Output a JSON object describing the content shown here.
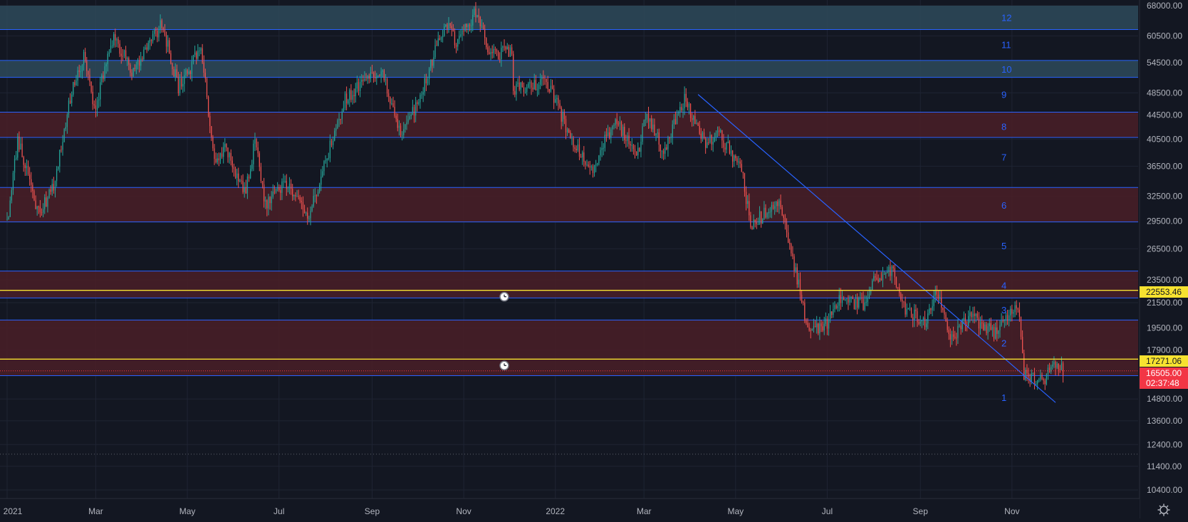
{
  "chart_data": {
    "type": "candlestick",
    "price_axis": {
      "scale": "log",
      "ticks": [
        "68000.00",
        "60500.00",
        "54500.00",
        "48500.00",
        "44500.00",
        "40500.00",
        "36500.00",
        "32500.00",
        "29500.00",
        "26500.00",
        "23500.00",
        "21500.00",
        "19500.00",
        "17900.00",
        "14800.00",
        "13600.00",
        "12400.00",
        "11400.00",
        "10400.00"
      ]
    },
    "time_axis": {
      "ticks": [
        "2021",
        "Mar",
        "May",
        "Jul",
        "Sep",
        "Nov",
        "2022",
        "Mar",
        "May",
        "Jul",
        "Sep",
        "Nov"
      ]
    },
    "horizontal_lines": [
      62000,
      55000,
      51500,
      45000,
      40800,
      33600,
      29400,
      24300,
      21900,
      20100,
      16200
    ],
    "zones": [
      {
        "top": 68000,
        "bottom": 62000,
        "color": "#2e4a5a"
      },
      {
        "top": 55000,
        "bottom": 51500,
        "color": "#2e4a5a"
      },
      {
        "top": 45000,
        "bottom": 40800,
        "color": "#4a1f27"
      },
      {
        "top": 33600,
        "bottom": 29400,
        "color": "#4a1f27"
      },
      {
        "top": 24300,
        "bottom": 21900,
        "color": "#4a1f27"
      },
      {
        "top": 20100,
        "bottom": 16200,
        "color": "#4a1f27"
      }
    ],
    "zone_labels": [
      {
        "text": "12",
        "price": 65000
      },
      {
        "text": "11",
        "price": 58500
      },
      {
        "text": "10",
        "price": 53200
      },
      {
        "text": "9",
        "price": 48200
      },
      {
        "text": "8",
        "price": 42600
      },
      {
        "text": "7",
        "price": 37800
      },
      {
        "text": "6",
        "price": 31400
      },
      {
        "text": "5",
        "price": 26800
      },
      {
        "text": "4",
        "price": 23000
      },
      {
        "text": "3",
        "price": 20900
      },
      {
        "text": "2",
        "price": 18400
      },
      {
        "text": "1",
        "price": 14900
      }
    ],
    "price_tags": [
      {
        "label": "22553.46",
        "bg": "#f7e230",
        "fg": "#131722"
      },
      {
        "label": "17271.06",
        "bg": "#f7e230",
        "fg": "#131722"
      },
      {
        "label": "16505.00",
        "bg": "#f23645",
        "fg": "#ffffff"
      },
      {
        "label": "02:37:48",
        "bg": "#f23645",
        "fg": "#ffffff"
      }
    ],
    "alert_lines": [
      22553.46,
      17271.06
    ],
    "dotted_line": 11950,
    "trendline": [
      {
        "date": "2022-04-06",
        "price": 48200
      },
      {
        "date": "2022-11-30",
        "price": 14600
      }
    ],
    "colors": {
      "up": "#26a69a",
      "down": "#ef5350",
      "line": "#2962ff",
      "alert": "#f7e230"
    },
    "keypoints": [
      [
        "2021-01-01",
        29000
      ],
      [
        "2021-01-08",
        40500
      ],
      [
        "2021-01-22",
        30500
      ],
      [
        "2021-02-01",
        33500
      ],
      [
        "2021-02-12",
        47500
      ],
      [
        "2021-02-21",
        56000
      ],
      [
        "2021-02-28",
        45000
      ],
      [
        "2021-03-13",
        61000
      ],
      [
        "2021-03-25",
        52500
      ],
      [
        "2021-04-14",
        63500
      ],
      [
        "2021-04-25",
        49500
      ],
      [
        "2021-05-10",
        57500
      ],
      [
        "2021-05-19",
        37500
      ],
      [
        "2021-05-26",
        39000
      ],
      [
        "2021-06-08",
        32800
      ],
      [
        "2021-06-15",
        40000
      ],
      [
        "2021-06-22",
        31500
      ],
      [
        "2021-07-06",
        34200
      ],
      [
        "2021-07-20",
        29800
      ],
      [
        "2021-08-14",
        47500
      ],
      [
        "2021-08-23",
        49800
      ],
      [
        "2021-09-07",
        52800
      ],
      [
        "2021-09-21",
        41000
      ],
      [
        "2021-10-05",
        49500
      ],
      [
        "2021-10-20",
        64000
      ],
      [
        "2021-10-27",
        58500
      ],
      [
        "2021-11-10",
        67000
      ],
      [
        "2021-11-18",
        56500
      ],
      [
        "2021-12-03",
        57000
      ],
      [
        "2021-12-04",
        49000
      ],
      [
        "2021-12-27",
        50500
      ],
      [
        "2022-01-10",
        41500
      ],
      [
        "2022-01-24",
        35500
      ],
      [
        "2022-02-10",
        44000
      ],
      [
        "2022-02-24",
        37500
      ],
      [
        "2022-03-02",
        44400
      ],
      [
        "2022-03-14",
        38800
      ],
      [
        "2022-03-28",
        47500
      ],
      [
        "2022-04-11",
        39500
      ],
      [
        "2022-04-20",
        41500
      ],
      [
        "2022-05-05",
        36000
      ],
      [
        "2022-05-11",
        29000
      ],
      [
        "2022-05-30",
        31800
      ],
      [
        "2022-06-13",
        22500
      ],
      [
        "2022-06-18",
        19200
      ],
      [
        "2022-07-01",
        19800
      ],
      [
        "2022-07-08",
        21800
      ],
      [
        "2022-07-26",
        21300
      ],
      [
        "2022-08-01",
        23300
      ],
      [
        "2022-08-14",
        24500
      ],
      [
        "2022-08-19",
        21200
      ],
      [
        "2022-09-04",
        19800
      ],
      [
        "2022-09-12",
        22300
      ],
      [
        "2022-09-21",
        18800
      ],
      [
        "2022-10-05",
        20300
      ],
      [
        "2022-10-21",
        19100
      ],
      [
        "2022-11-05",
        21300
      ],
      [
        "2022-11-09",
        16300
      ],
      [
        "2022-11-21",
        15800
      ],
      [
        "2022-11-30",
        17000
      ],
      [
        "2022-12-05",
        16505
      ]
    ]
  }
}
